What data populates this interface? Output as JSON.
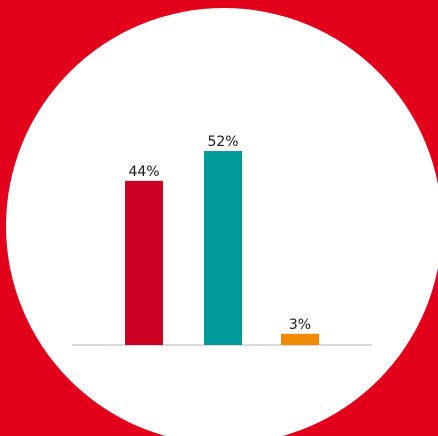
{
  "background_color": "#e2001a",
  "circle_color": "#ffffff",
  "baseline_color": "#d9d9d9",
  "label_color": "#1a1a1a",
  "chart_data": {
    "type": "bar",
    "categories": [
      "",
      "",
      ""
    ],
    "values": [
      44,
      52,
      3
    ],
    "value_labels": [
      "44%",
      "52%",
      "3%"
    ],
    "colors": [
      "#cc0022",
      "#009a9a",
      "#f08a00"
    ],
    "ylim": [
      0,
      100
    ],
    "grid": false,
    "legend": "none"
  }
}
